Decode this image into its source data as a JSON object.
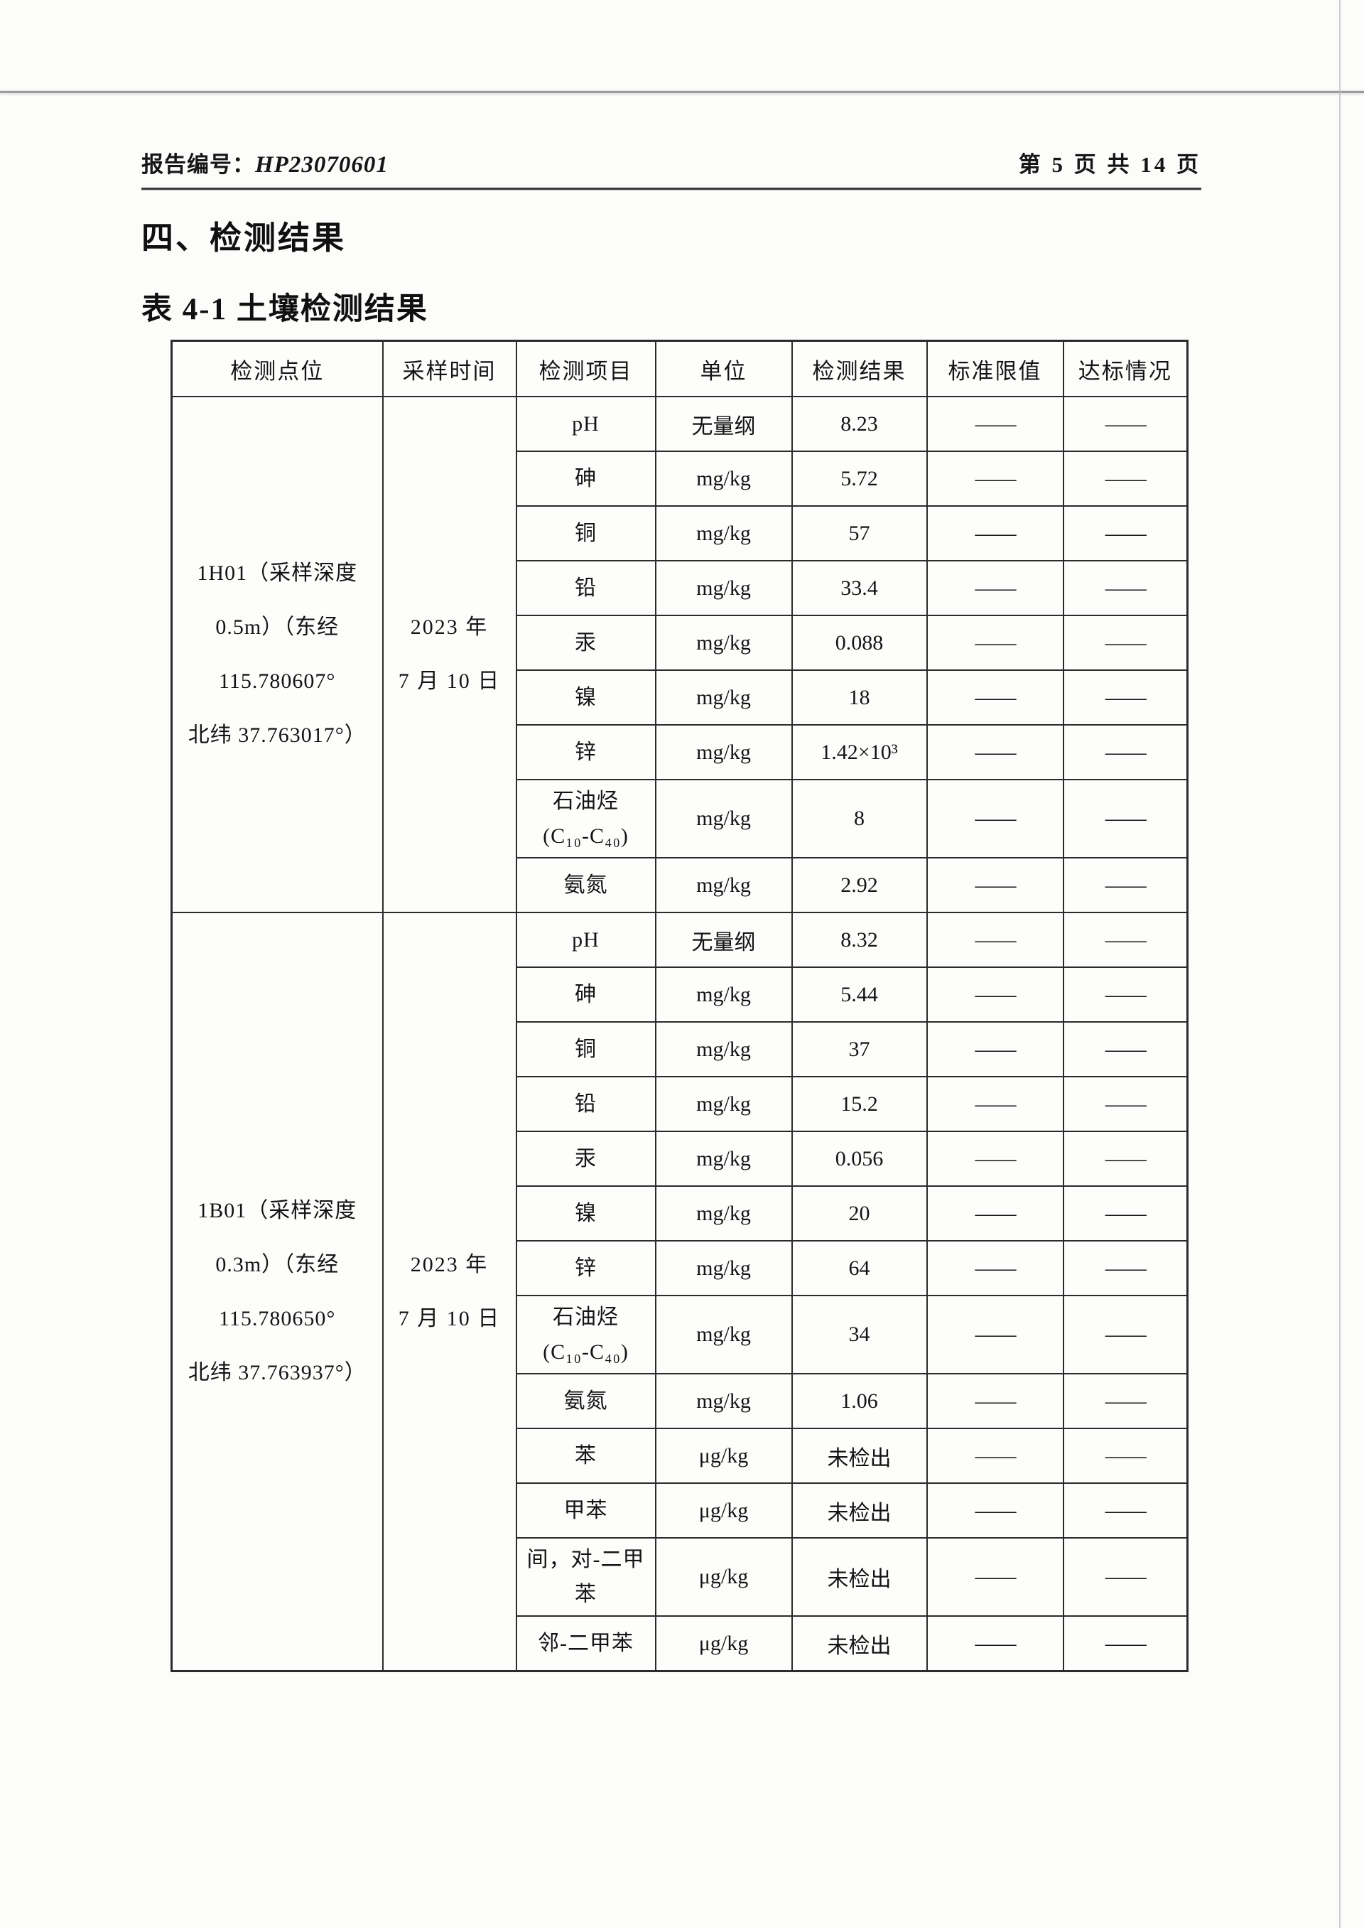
{
  "header": {
    "report_label": "报告编号：",
    "report_no": "HP23070601",
    "page_info": "第 5 页 共 14 页"
  },
  "section_title": "四、检测结果",
  "table_title": "表 4-1 土壤检测结果",
  "table": {
    "columns": [
      "检测点位",
      "采样时间",
      "检测项目",
      "单位",
      "检测结果",
      "标准限值",
      "达标情况"
    ],
    "groups": [
      {
        "location": "1H01（采样深度\n0.5m）（东经\n115.780607°\n北纬 37.763017°）",
        "sample_time": "2023 年\n7 月 10 日",
        "rows": [
          {
            "item": "pH",
            "unit": "无量纲",
            "result": "8.23",
            "limit": "——",
            "status": "——"
          },
          {
            "item": "砷",
            "unit": "mg/kg",
            "result": "5.72",
            "limit": "——",
            "status": "——"
          },
          {
            "item": "铜",
            "unit": "mg/kg",
            "result": "57",
            "limit": "——",
            "status": "——"
          },
          {
            "item": "铅",
            "unit": "mg/kg",
            "result": "33.4",
            "limit": "——",
            "status": "——"
          },
          {
            "item": "汞",
            "unit": "mg/kg",
            "result": "0.088",
            "limit": "——",
            "status": "——"
          },
          {
            "item": "镍",
            "unit": "mg/kg",
            "result": "18",
            "limit": "——",
            "status": "——"
          },
          {
            "item": "锌",
            "unit": "mg/kg",
            "result": "1.42×10³",
            "limit": "——",
            "status": "——"
          },
          {
            "item": "石油烃\n(C₁₀-C₄₀)",
            "unit": "mg/kg",
            "result": "8",
            "limit": "——",
            "status": "——"
          },
          {
            "item": "氨氮",
            "unit": "mg/kg",
            "result": "2.92",
            "limit": "——",
            "status": "——"
          }
        ]
      },
      {
        "location": "1B01（采样深度\n0.3m）（东经\n115.780650°\n北纬 37.763937°）",
        "sample_time": "2023 年\n7 月 10 日",
        "rows": [
          {
            "item": "pH",
            "unit": "无量纲",
            "result": "8.32",
            "limit": "——",
            "status": "——"
          },
          {
            "item": "砷",
            "unit": "mg/kg",
            "result": "5.44",
            "limit": "——",
            "status": "——"
          },
          {
            "item": "铜",
            "unit": "mg/kg",
            "result": "37",
            "limit": "——",
            "status": "——"
          },
          {
            "item": "铅",
            "unit": "mg/kg",
            "result": "15.2",
            "limit": "——",
            "status": "——"
          },
          {
            "item": "汞",
            "unit": "mg/kg",
            "result": "0.056",
            "limit": "——",
            "status": "——"
          },
          {
            "item": "镍",
            "unit": "mg/kg",
            "result": "20",
            "limit": "——",
            "status": "——"
          },
          {
            "item": "锌",
            "unit": "mg/kg",
            "result": "64",
            "limit": "——",
            "status": "——"
          },
          {
            "item": "石油烃\n(C₁₀-C₄₀)",
            "unit": "mg/kg",
            "result": "34",
            "limit": "——",
            "status": "——"
          },
          {
            "item": "氨氮",
            "unit": "mg/kg",
            "result": "1.06",
            "limit": "——",
            "status": "——"
          },
          {
            "item": "苯",
            "unit": "μg/kg",
            "result": "未检出",
            "limit": "——",
            "status": "——"
          },
          {
            "item": "甲苯",
            "unit": "μg/kg",
            "result": "未检出",
            "limit": "——",
            "status": "——"
          },
          {
            "item": "间，对-二甲\n苯",
            "unit": "μg/kg",
            "result": "未检出",
            "limit": "——",
            "status": "——"
          },
          {
            "item": "邻-二甲苯",
            "unit": "μg/kg",
            "result": "未检出",
            "limit": "——",
            "status": "——"
          }
        ]
      }
    ]
  }
}
